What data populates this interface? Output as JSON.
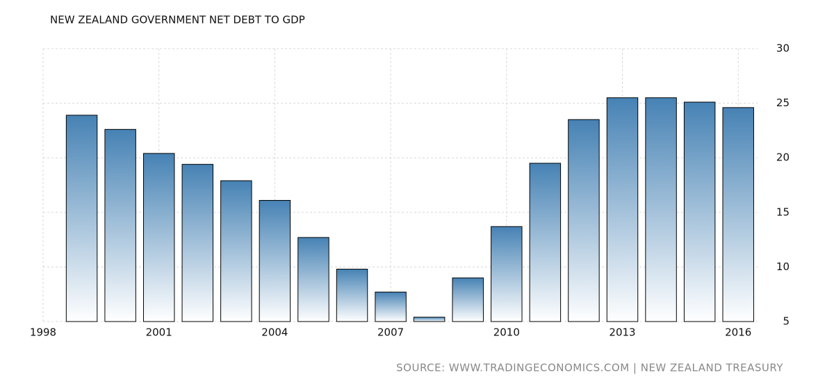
{
  "chart_data": {
    "type": "bar",
    "title": "NEW ZEALAND GOVERNMENT NET DEBT TO GDP",
    "source": "SOURCE: WWW.TRADINGECONOMICS.COM | NEW ZEALAND TREASURY",
    "x": [
      1999,
      2000,
      2001,
      2002,
      2003,
      2004,
      2005,
      2006,
      2007,
      2008,
      2009,
      2010,
      2011,
      2012,
      2013,
      2014,
      2015,
      2016
    ],
    "values": [
      23.9,
      22.6,
      20.4,
      19.4,
      17.9,
      16.1,
      12.7,
      9.8,
      7.7,
      5.4,
      9.0,
      13.7,
      19.5,
      23.5,
      25.5,
      25.5,
      25.1,
      24.6
    ],
    "color": "#4682b4",
    "xlim": [
      1998,
      2016.5
    ],
    "xticks": [
      1998,
      2001,
      2004,
      2007,
      2010,
      2013,
      2016
    ],
    "ylim": [
      5,
      30
    ],
    "yticks": [
      5,
      10,
      15,
      20,
      25,
      30
    ],
    "grid": true
  }
}
